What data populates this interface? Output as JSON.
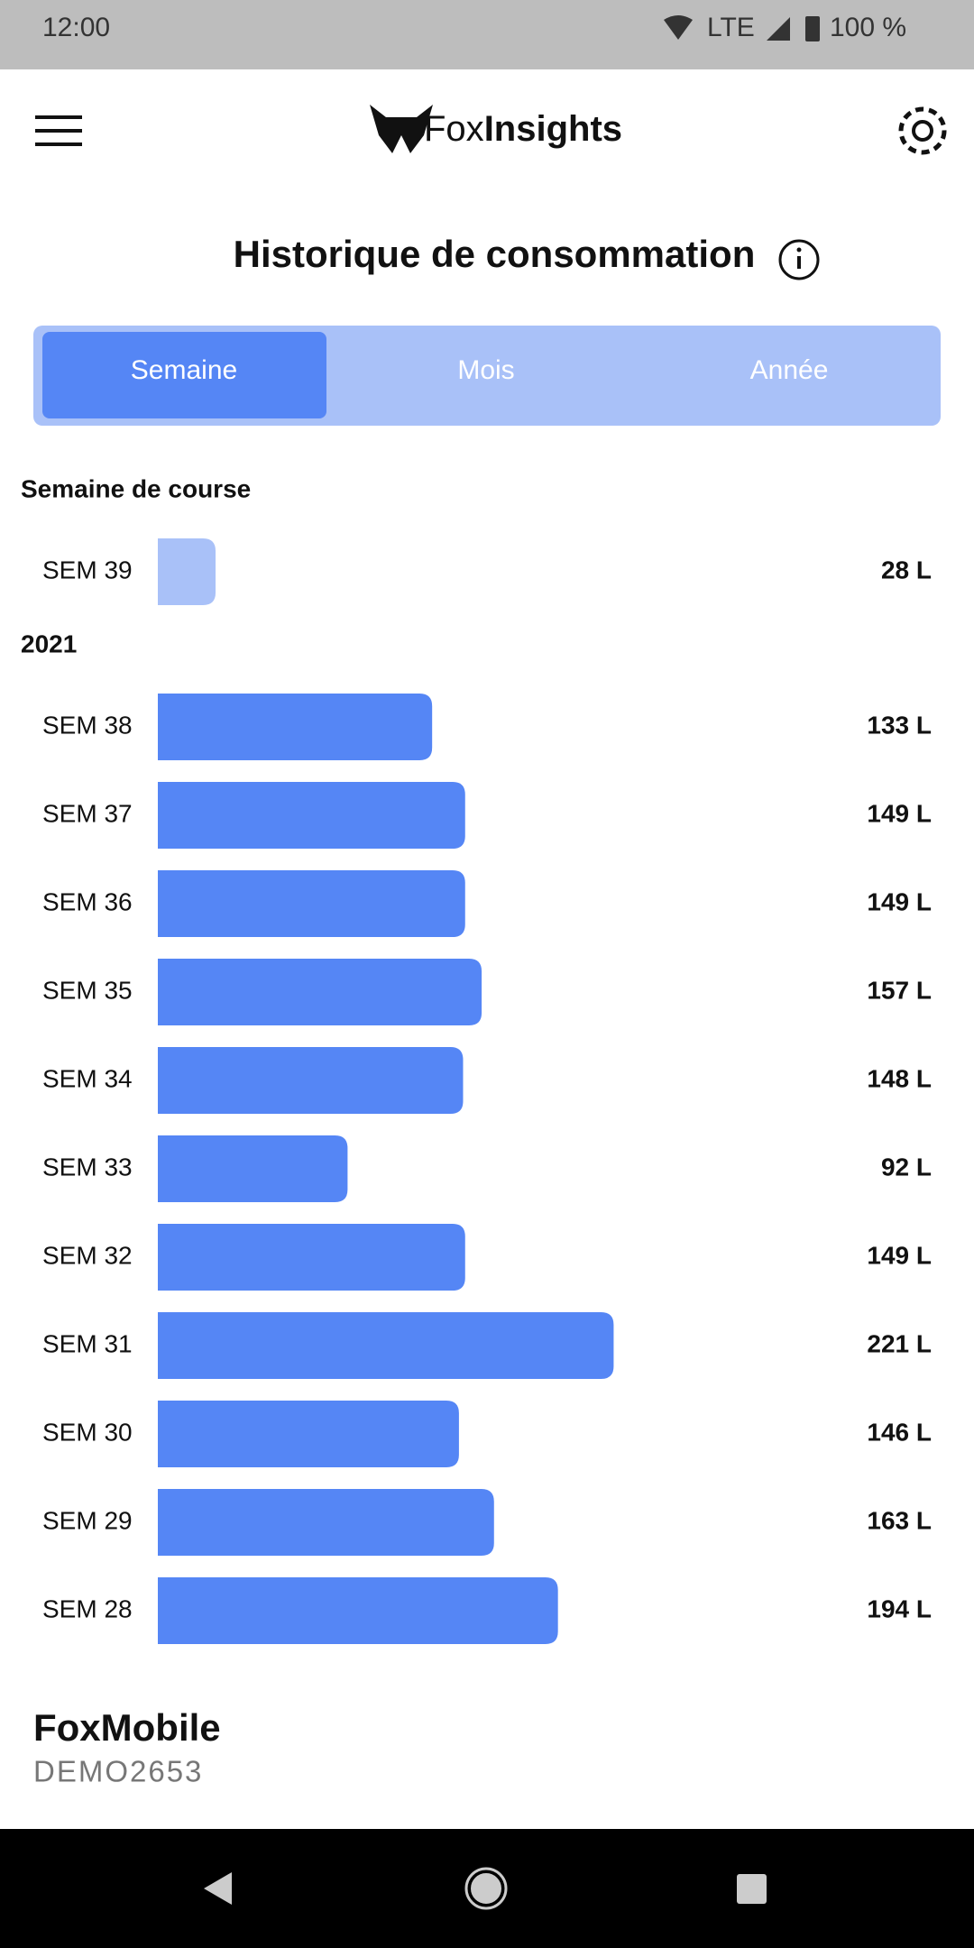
{
  "status_bar": {
    "time": "12:00",
    "network": "LTE",
    "battery": "100 %"
  },
  "header": {
    "logo_prefix": "Fox",
    "logo_suffix": "Insights"
  },
  "title": "Historique de consommation",
  "tabs": [
    "Semaine",
    "Mois",
    "Année"
  ],
  "active_tab": 0,
  "chart_data": {
    "type": "bar",
    "orientation": "horizontal",
    "groups": [
      {
        "label": "Semaine de course",
        "color": "#a9c1f8",
        "categories": [
          "SEM 39"
        ],
        "values": [
          28
        ],
        "value_labels": [
          "28 L"
        ]
      },
      {
        "label": "2021",
        "color": "#5586f5",
        "categories": [
          "SEM 38",
          "SEM 37",
          "SEM 36",
          "SEM 35",
          "SEM 34",
          "SEM 33",
          "SEM 32",
          "SEM 31",
          "SEM 30",
          "SEM 29",
          "SEM 28"
        ],
        "values": [
          133,
          149,
          149,
          157,
          148,
          92,
          149,
          221,
          146,
          163,
          194
        ],
        "value_labels": [
          "133 L",
          "149 L",
          "149 L",
          "157 L",
          "148 L",
          "92 L",
          "149 L",
          "221 L",
          "146 L",
          "163 L",
          "194 L"
        ]
      }
    ]
  },
  "footer": {
    "name": "FoxMobile",
    "id": "DEMO2653"
  }
}
